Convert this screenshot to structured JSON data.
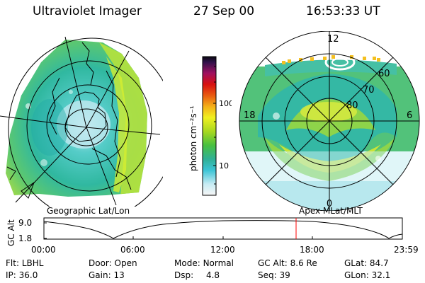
{
  "header": {
    "instrument": "Ultraviolet Imager",
    "date": "27 Sep 00",
    "time": "16:53:33 UT"
  },
  "colorbar": {
    "unit_label": "photon cm⁻²s⁻¹",
    "ticks": [
      "100",
      "10"
    ]
  },
  "geo_panel": {
    "caption": "Geographic Lat/Lon"
  },
  "polar_panel": {
    "caption": "Apex MLat/MLT",
    "mlt_labels": {
      "top": "12",
      "left": "18",
      "right": "6",
      "bottom": "0"
    },
    "lat_labels": [
      "60",
      "70",
      "80"
    ]
  },
  "altitude_plot": {
    "ylabel": "GC Alt",
    "yticks": [
      "9.0",
      "1.8"
    ],
    "xticks": [
      "00:00",
      "06:00",
      "12:00",
      "18:00",
      "23:59"
    ],
    "marker_time": "16:53"
  },
  "status": {
    "filter": {
      "label": "Flt:",
      "value": "LBHL"
    },
    "ip": {
      "label": "IP:",
      "value": "36.0"
    },
    "door": {
      "label": "Door:",
      "value": "Open"
    },
    "gain": {
      "label": "Gain:",
      "value": "13"
    },
    "mode": {
      "label": "Mode:",
      "value": "Normal"
    },
    "dsp": {
      "label": "Dsp:",
      "value": "4.8"
    },
    "gc_alt": {
      "label": "GC Alt:",
      "value": "8.6 Re"
    },
    "seq": {
      "label": "Seq:",
      "value": "39"
    },
    "glat": {
      "label": "GLat:",
      "value": "84.7"
    },
    "glon": {
      "label": "GLon:",
      "value": "32.1"
    }
  },
  "colors": {
    "marker": "#ff0000"
  }
}
